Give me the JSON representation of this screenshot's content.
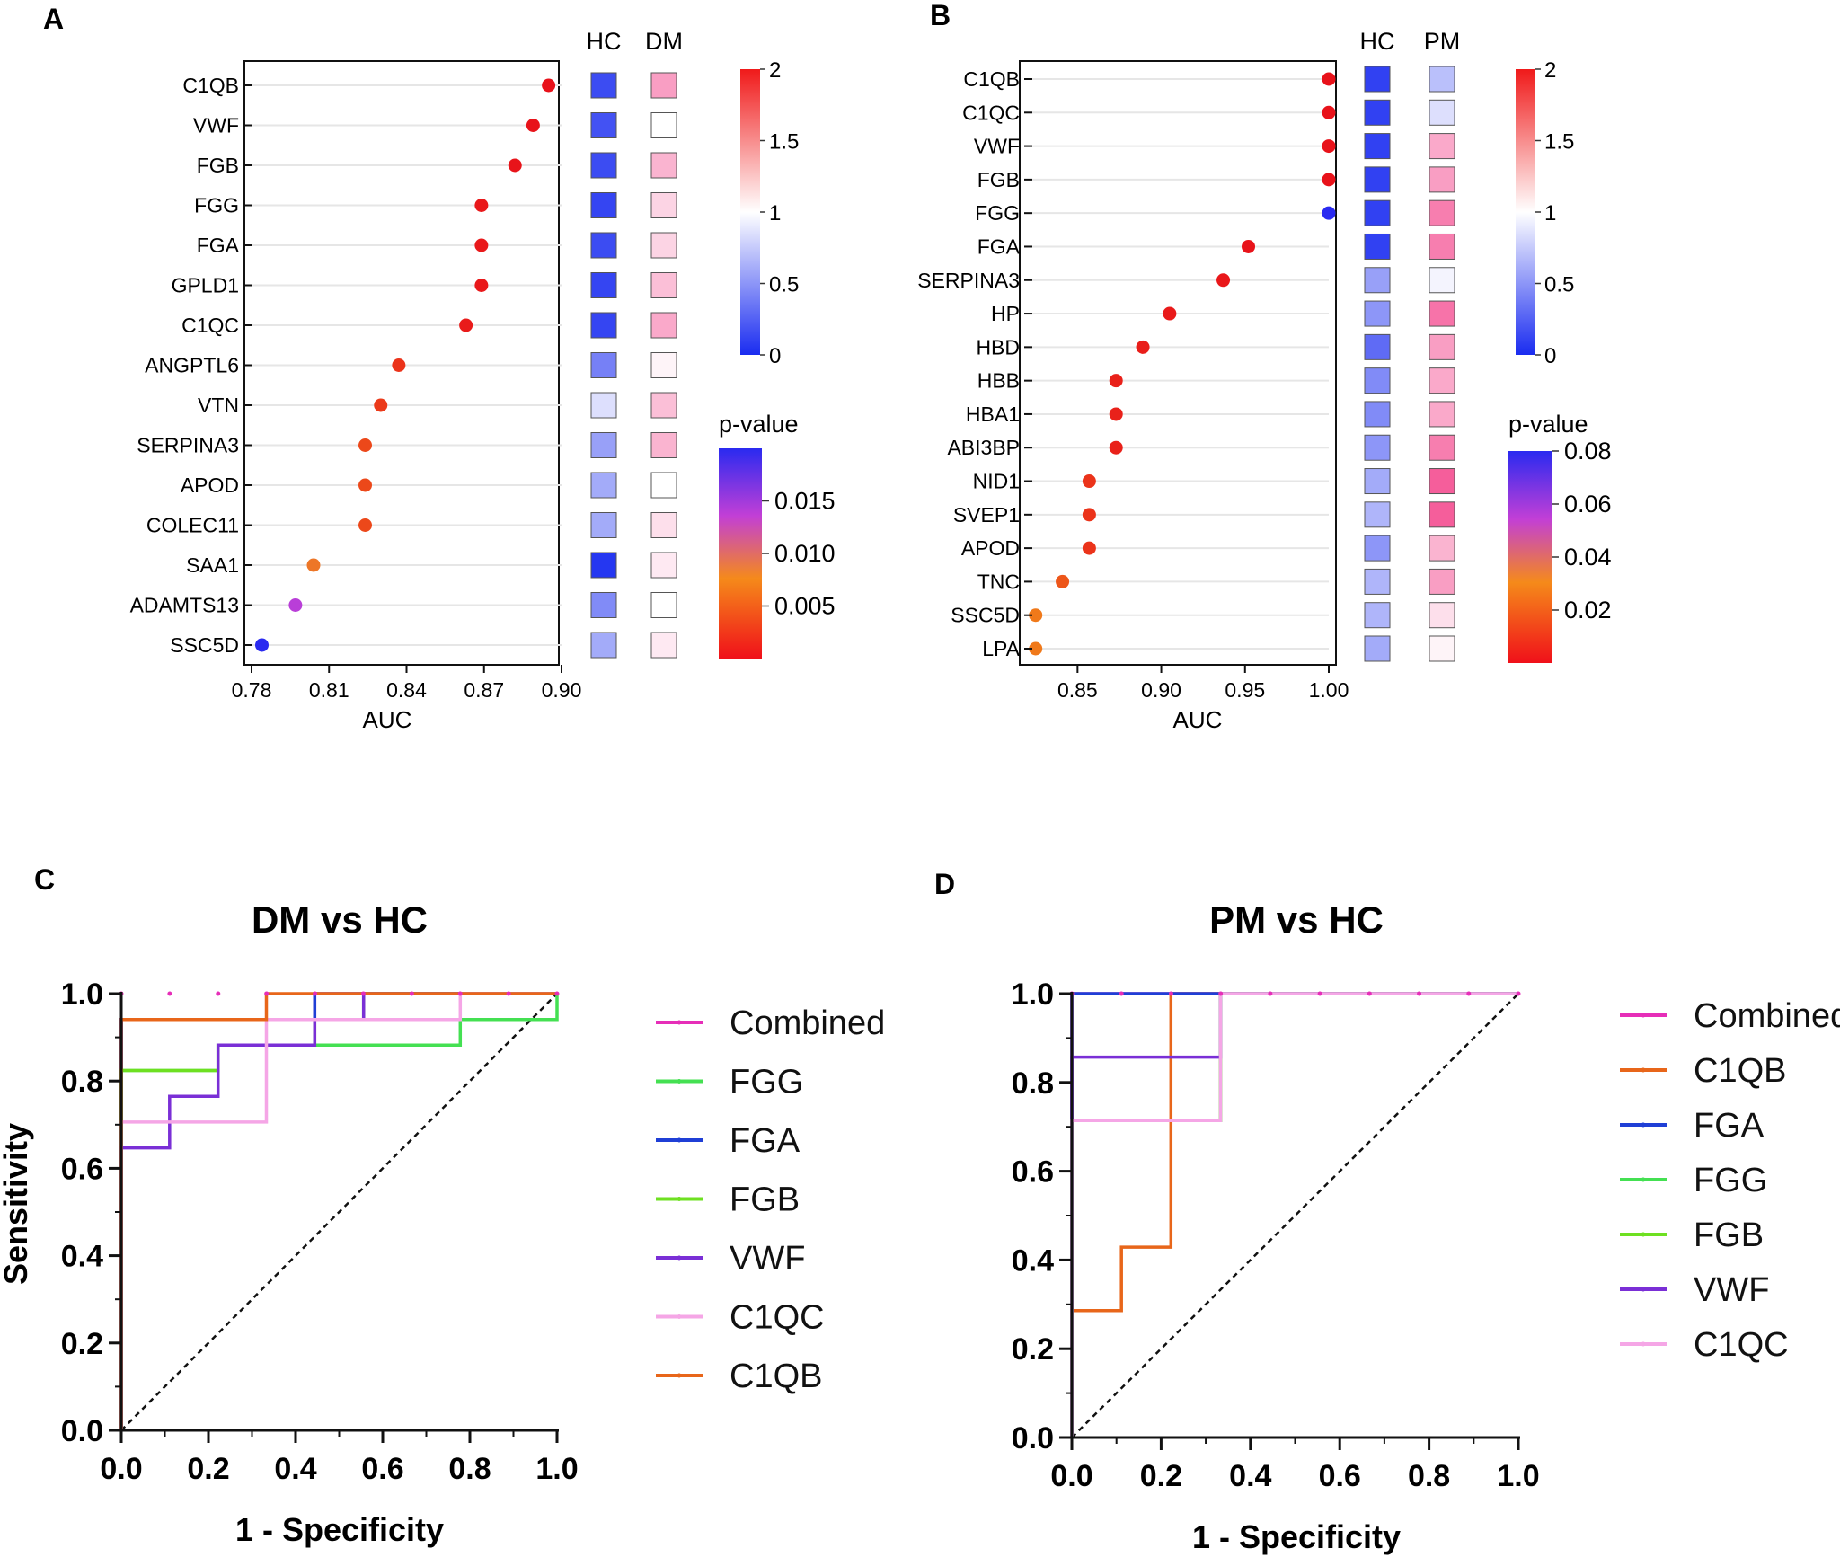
{
  "figure": {
    "panel_labels": [
      "A",
      "B",
      "C",
      "D"
    ]
  },
  "chart_data": [
    {
      "panel": "A",
      "type": "scatter",
      "subtype": "dot-plot-with-heatmap",
      "xlabel": "AUC",
      "xlim": [
        0.78,
        0.9
      ],
      "xticks": [
        "0.78",
        "0.81",
        "0.84",
        "0.87",
        "0.90"
      ],
      "categories": [
        "C1QB",
        "VWF",
        "FGB",
        "FGG",
        "FGA",
        "GPLD1",
        "C1QC",
        "ANGPTL6",
        "VTN",
        "SERPINA3",
        "APOD",
        "COLEC11",
        "SAA1",
        "ADAMTS13",
        "SSC5D"
      ],
      "auc": [
        0.895,
        0.889,
        0.882,
        0.869,
        0.869,
        0.869,
        0.863,
        0.837,
        0.83,
        0.824,
        0.824,
        0.824,
        0.804,
        0.797,
        0.784
      ],
      "p_values": [
        0.0001,
        0.0002,
        0.0003,
        0.0006,
        0.0006,
        0.0006,
        0.0008,
        0.0025,
        0.003,
        0.004,
        0.004,
        0.004,
        0.008,
        0.014,
        0.02
      ],
      "heatmap_columns": [
        "HC",
        "DM"
      ],
      "heatmap_values": {
        "HC": [
          0.15,
          0.18,
          0.15,
          0.12,
          0.15,
          0.12,
          0.12,
          0.4,
          0.85,
          0.55,
          0.6,
          0.6,
          0.05,
          0.45,
          0.6
        ],
        "DM": [
          1.45,
          1.0,
          1.35,
          1.2,
          1.2,
          1.3,
          1.4,
          1.05,
          1.3,
          1.35,
          1.0,
          1.15,
          1.1,
          1.0,
          1.1
        ]
      },
      "colorbar_fold": {
        "min": 0,
        "max": 2,
        "ticks": [
          "2",
          "1.5",
          "1",
          "0.5",
          "0"
        ]
      },
      "colorbar_p": {
        "title": "p-value",
        "min": 0,
        "max": 0.02,
        "ticks": [
          "0.015",
          "0.010",
          "0.005"
        ]
      }
    },
    {
      "panel": "B",
      "type": "scatter",
      "subtype": "dot-plot-with-heatmap",
      "xlabel": "AUC",
      "xlim": [
        0.823,
        1.0
      ],
      "xticks": [
        "0.85",
        "0.90",
        "0.95",
        "1.00"
      ],
      "categories": [
        "C1QB",
        "C1QC",
        "VWF",
        "FGB",
        "FGG",
        "FGA",
        "SERPINA3",
        "HP",
        "HBD",
        "HBB",
        "HBA1",
        "ABI3BP",
        "NID1",
        "SVEP1",
        "APOD",
        "TNC",
        "SSC5D",
        "LPA"
      ],
      "auc": [
        1.0,
        1.0,
        1.0,
        1.0,
        1.0,
        0.952,
        0.937,
        0.905,
        0.889,
        0.873,
        0.873,
        0.873,
        0.857,
        0.857,
        0.857,
        0.841,
        0.825,
        0.825
      ],
      "p_values": [
        0.0005,
        0.0005,
        0.0005,
        0.0005,
        0.085,
        0.001,
        0.002,
        0.003,
        0.004,
        0.005,
        0.005,
        0.005,
        0.01,
        0.01,
        0.01,
        0.02,
        0.03,
        0.03
      ],
      "heatmap_columns": [
        "HC",
        "PM"
      ],
      "heatmap_values": {
        "HC": [
          0.1,
          0.1,
          0.1,
          0.1,
          0.1,
          0.1,
          0.55,
          0.5,
          0.3,
          0.45,
          0.45,
          0.5,
          0.6,
          0.65,
          0.5,
          0.65,
          0.65,
          0.6
        ],
        "PM": [
          0.7,
          0.85,
          1.4,
          1.45,
          1.6,
          1.6,
          0.95,
          1.65,
          1.45,
          1.4,
          1.4,
          1.6,
          1.75,
          1.75,
          1.35,
          1.45,
          1.15,
          1.05
        ]
      },
      "colorbar_fold": {
        "min": 0,
        "max": 2,
        "ticks": [
          "2",
          "1.5",
          "1",
          "0.5",
          "0"
        ]
      },
      "colorbar_p": {
        "title": "p-value",
        "min": 0,
        "max": 0.08,
        "ticks": [
          "0.08",
          "0.06",
          "0.04",
          "0.02"
        ]
      }
    },
    {
      "panel": "C",
      "type": "line",
      "subtype": "roc",
      "title": "DM vs HC",
      "xlabel": "1 - Specificity",
      "ylabel": "Sensitivity",
      "xlim": [
        0,
        1
      ],
      "ylim": [
        0,
        1
      ],
      "xticks": [
        "0.0",
        "0.2",
        "0.4",
        "0.6",
        "0.8",
        "1.0"
      ],
      "yticks": [
        "0.0",
        "0.2",
        "0.4",
        "0.6",
        "0.8",
        "1.0"
      ],
      "series": [
        {
          "name": "Combined",
          "color": "#e62eb8",
          "points": [
            [
              0,
              0
            ],
            [
              0,
              0.941
            ],
            [
              0.444,
              0.941
            ],
            [
              0.444,
              1
            ],
            [
              1,
              1
            ]
          ]
        },
        {
          "name": "FGG",
          "color": "#44e052",
          "points": [
            [
              0,
              0
            ],
            [
              0,
              0.824
            ],
            [
              0.222,
              0.824
            ],
            [
              0.222,
              0.882
            ],
            [
              0.778,
              0.882
            ],
            [
              0.778,
              0.941
            ],
            [
              1,
              0.941
            ],
            [
              1,
              1
            ]
          ]
        },
        {
          "name": "FGA",
          "color": "#1f3fd6",
          "points": [
            [
              0,
              0
            ],
            [
              0,
              0.941
            ],
            [
              0.444,
              0.941
            ],
            [
              0.444,
              1
            ],
            [
              1,
              1
            ]
          ]
        },
        {
          "name": "FGB",
          "color": "#6ee021",
          "points": [
            [
              0,
              0
            ],
            [
              0,
              0.824
            ],
            [
              0.222,
              0.824
            ],
            [
              0.222,
              0.882
            ],
            [
              0.444,
              0.882
            ],
            [
              0.444,
              0.941
            ],
            [
              0.556,
              0.941
            ],
            [
              0.556,
              1
            ],
            [
              1,
              1
            ]
          ]
        },
        {
          "name": "VWF",
          "color": "#7a2fd6",
          "points": [
            [
              0,
              0
            ],
            [
              0,
              0.647
            ],
            [
              0.111,
              0.647
            ],
            [
              0.111,
              0.765
            ],
            [
              0.222,
              0.765
            ],
            [
              0.222,
              0.882
            ],
            [
              0.444,
              0.882
            ],
            [
              0.444,
              0.941
            ],
            [
              0.556,
              0.941
            ],
            [
              0.556,
              1
            ],
            [
              1,
              1
            ]
          ]
        },
        {
          "name": "C1QC",
          "color": "#f5a6e6",
          "points": [
            [
              0,
              0
            ],
            [
              0,
              0.706
            ],
            [
              0.333,
              0.706
            ],
            [
              0.333,
              0.941
            ],
            [
              0.778,
              0.941
            ],
            [
              0.778,
              1
            ],
            [
              1,
              1
            ]
          ]
        },
        {
          "name": "C1QB",
          "color": "#e8661a",
          "points": [
            [
              0,
              0
            ],
            [
              0,
              0.941
            ],
            [
              0.333,
              0.941
            ],
            [
              0.333,
              1
            ],
            [
              1,
              1
            ]
          ]
        }
      ]
    },
    {
      "panel": "D",
      "type": "line",
      "subtype": "roc",
      "title": "PM vs HC",
      "xlabel": "1 - Specificity",
      "ylabel": "",
      "xlim": [
        0,
        1
      ],
      "ylim": [
        0,
        1
      ],
      "xticks": [
        "0.0",
        "0.2",
        "0.4",
        "0.6",
        "0.8",
        "1.0"
      ],
      "yticks": [
        "0.0",
        "0.2",
        "0.4",
        "0.6",
        "0.8",
        "1.0"
      ],
      "series": [
        {
          "name": "Combined",
          "color": "#e62eb8",
          "points": [
            [
              0,
              0
            ],
            [
              0,
              1
            ],
            [
              1,
              1
            ]
          ]
        },
        {
          "name": "C1QB",
          "color": "#e8661a",
          "points": [
            [
              0,
              0
            ],
            [
              0,
              0.286
            ],
            [
              0.111,
              0.286
            ],
            [
              0.111,
              0.429
            ],
            [
              0.222,
              0.429
            ],
            [
              0.222,
              1
            ],
            [
              1,
              1
            ]
          ]
        },
        {
          "name": "FGA",
          "color": "#1f3fd6",
          "points": [
            [
              0,
              0
            ],
            [
              0,
              1
            ],
            [
              1,
              1
            ]
          ]
        },
        {
          "name": "FGG",
          "color": "#44e052",
          "points": [
            [
              0,
              0
            ],
            [
              0,
              0.714
            ],
            [
              0.333,
              0.714
            ],
            [
              0.333,
              1
            ],
            [
              1,
              1
            ]
          ]
        },
        {
          "name": "FGB",
          "color": "#6ee021",
          "points": [
            [
              0,
              0
            ],
            [
              0,
              0.714
            ],
            [
              0.333,
              0.714
            ],
            [
              0.333,
              1
            ],
            [
              1,
              1
            ]
          ]
        },
        {
          "name": "VWF",
          "color": "#7a2fd6",
          "points": [
            [
              0,
              0
            ],
            [
              0,
              0.857
            ],
            [
              0.333,
              0.857
            ],
            [
              0.333,
              1
            ],
            [
              1,
              1
            ]
          ]
        },
        {
          "name": "C1QC",
          "color": "#f5a6e6",
          "points": [
            [
              0,
              0
            ],
            [
              0,
              0.714
            ],
            [
              0.333,
              0.714
            ],
            [
              0.333,
              1
            ],
            [
              1,
              1
            ]
          ]
        }
      ]
    }
  ]
}
